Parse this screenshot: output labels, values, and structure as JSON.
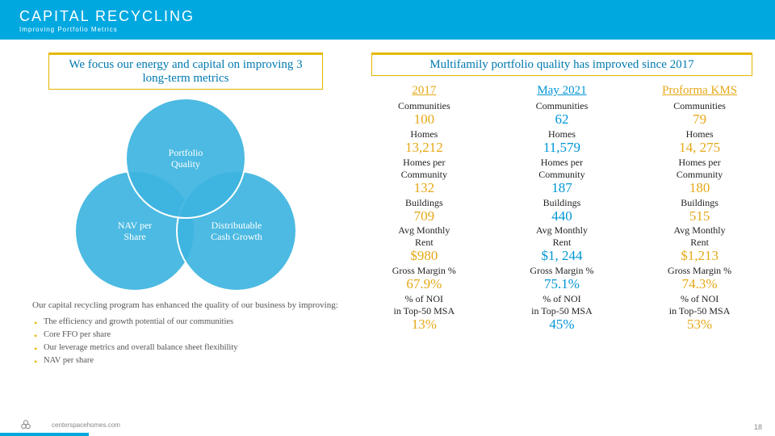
{
  "header": {
    "title": "CAPITAL RECYCLING",
    "subtitle": "Improving Portfolio Metrics"
  },
  "left": {
    "callout": "We focus our energy and capital on improving 3 long-term metrics",
    "venn": {
      "c1": "Portfolio\nQuality",
      "c2": "NAV per\nShare",
      "c3": "Distributable\nCash Growth",
      "circle_fill": "#3db4df",
      "circle_border": "#ffffff"
    },
    "para": "Our capital recycling program has enhanced the quality of our business by improving:",
    "bullets": [
      "The efficiency and growth potential of our communities",
      "Core FFO per share",
      "Our leverage metrics and overall balance sheet flexibility",
      "NAV per share"
    ]
  },
  "right": {
    "callout": "Multifamily portfolio quality has improved since 2017",
    "metrics": [
      "Communities",
      "Homes",
      "Homes per Community",
      "Buildings",
      "Avg Monthly Rent",
      "Gross Margin %",
      "% of NOI in Top-50 MSA"
    ],
    "columns": [
      {
        "head": "2017",
        "color": "orange",
        "values": [
          "100",
          "13,212",
          "132",
          "709",
          "$980",
          "67.9%",
          "13%"
        ]
      },
      {
        "head": "May 2021",
        "color": "blue",
        "values": [
          "62",
          "11,579",
          "187",
          "440",
          "$1, 244",
          "75.1%",
          "45%"
        ]
      },
      {
        "head": "Proforma KMS",
        "color": "orange",
        "values": [
          "79",
          "14, 275",
          "180",
          "515",
          "$1,213",
          "74.3%",
          "53%"
        ]
      }
    ]
  },
  "footer": {
    "url": "centerspacehomes.com",
    "page": "18"
  },
  "colors": {
    "brand": "#00a8e0",
    "orange": "#e6a817",
    "blue": "#0096d6",
    "gold_border": "#e6b800"
  }
}
